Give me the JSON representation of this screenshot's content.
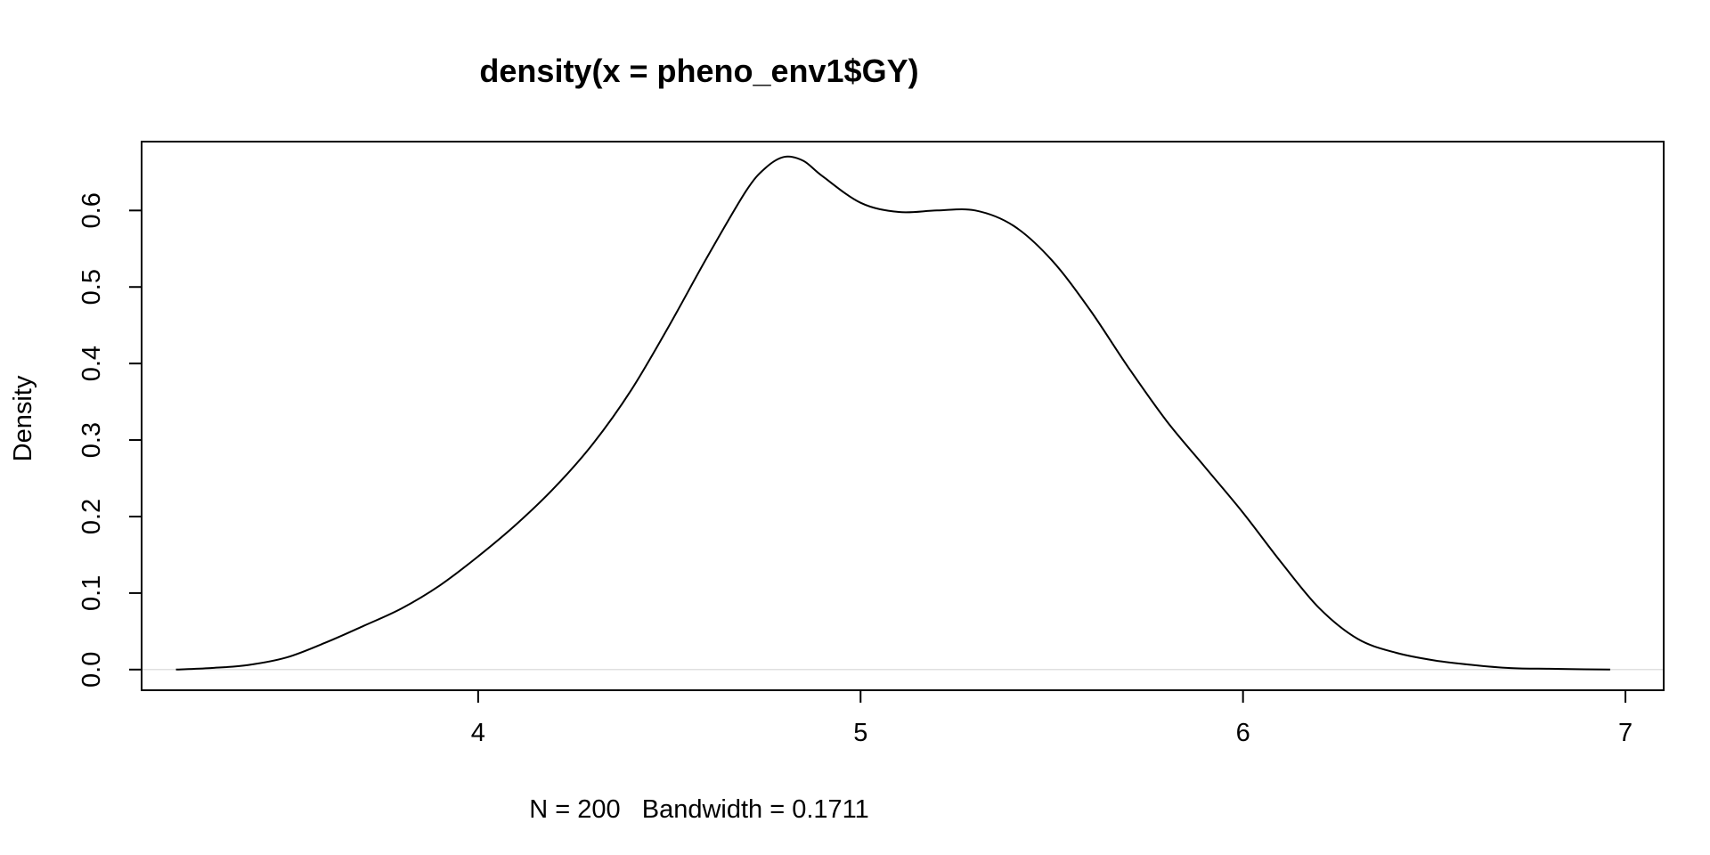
{
  "chart_data": {
    "type": "line",
    "title": "density(x = pheno_env1$GY)",
    "xlabel": "N = 200   Bandwidth = 0.1711",
    "ylabel": "Density",
    "xlim": [
      3.12,
      7.1
    ],
    "ylim": [
      -0.027,
      0.69
    ],
    "xticks": [
      4,
      5,
      6,
      7
    ],
    "xtick_labels": [
      "4",
      "5",
      "6",
      "7"
    ],
    "yticks": [
      0.0,
      0.1,
      0.2,
      0.3,
      0.4,
      0.5,
      0.6
    ],
    "ytick_labels": [
      "0.0",
      "0.1",
      "0.2",
      "0.3",
      "0.4",
      "0.5",
      "0.6"
    ],
    "grid": false,
    "legend": "none",
    "zero_line_color": "#e0e0e0",
    "line_color": "#000000",
    "series": [
      {
        "x": [
          3.21,
          3.3,
          3.4,
          3.5,
          3.6,
          3.7,
          3.8,
          3.9,
          4.0,
          4.1,
          4.2,
          4.3,
          4.4,
          4.5,
          4.6,
          4.7,
          4.75,
          4.8,
          4.85,
          4.9,
          5.0,
          5.1,
          5.2,
          5.3,
          5.4,
          5.5,
          5.6,
          5.7,
          5.8,
          5.9,
          6.0,
          6.1,
          6.2,
          6.3,
          6.4,
          6.5,
          6.6,
          6.7,
          6.8,
          6.96
        ],
        "y": [
          0.0,
          0.002,
          0.006,
          0.016,
          0.035,
          0.057,
          0.08,
          0.11,
          0.148,
          0.19,
          0.238,
          0.295,
          0.365,
          0.45,
          0.54,
          0.625,
          0.655,
          0.67,
          0.665,
          0.645,
          0.61,
          0.598,
          0.6,
          0.6,
          0.58,
          0.535,
          0.47,
          0.395,
          0.325,
          0.265,
          0.205,
          0.14,
          0.08,
          0.04,
          0.022,
          0.012,
          0.006,
          0.002,
          0.001,
          0.0
        ]
      }
    ]
  }
}
